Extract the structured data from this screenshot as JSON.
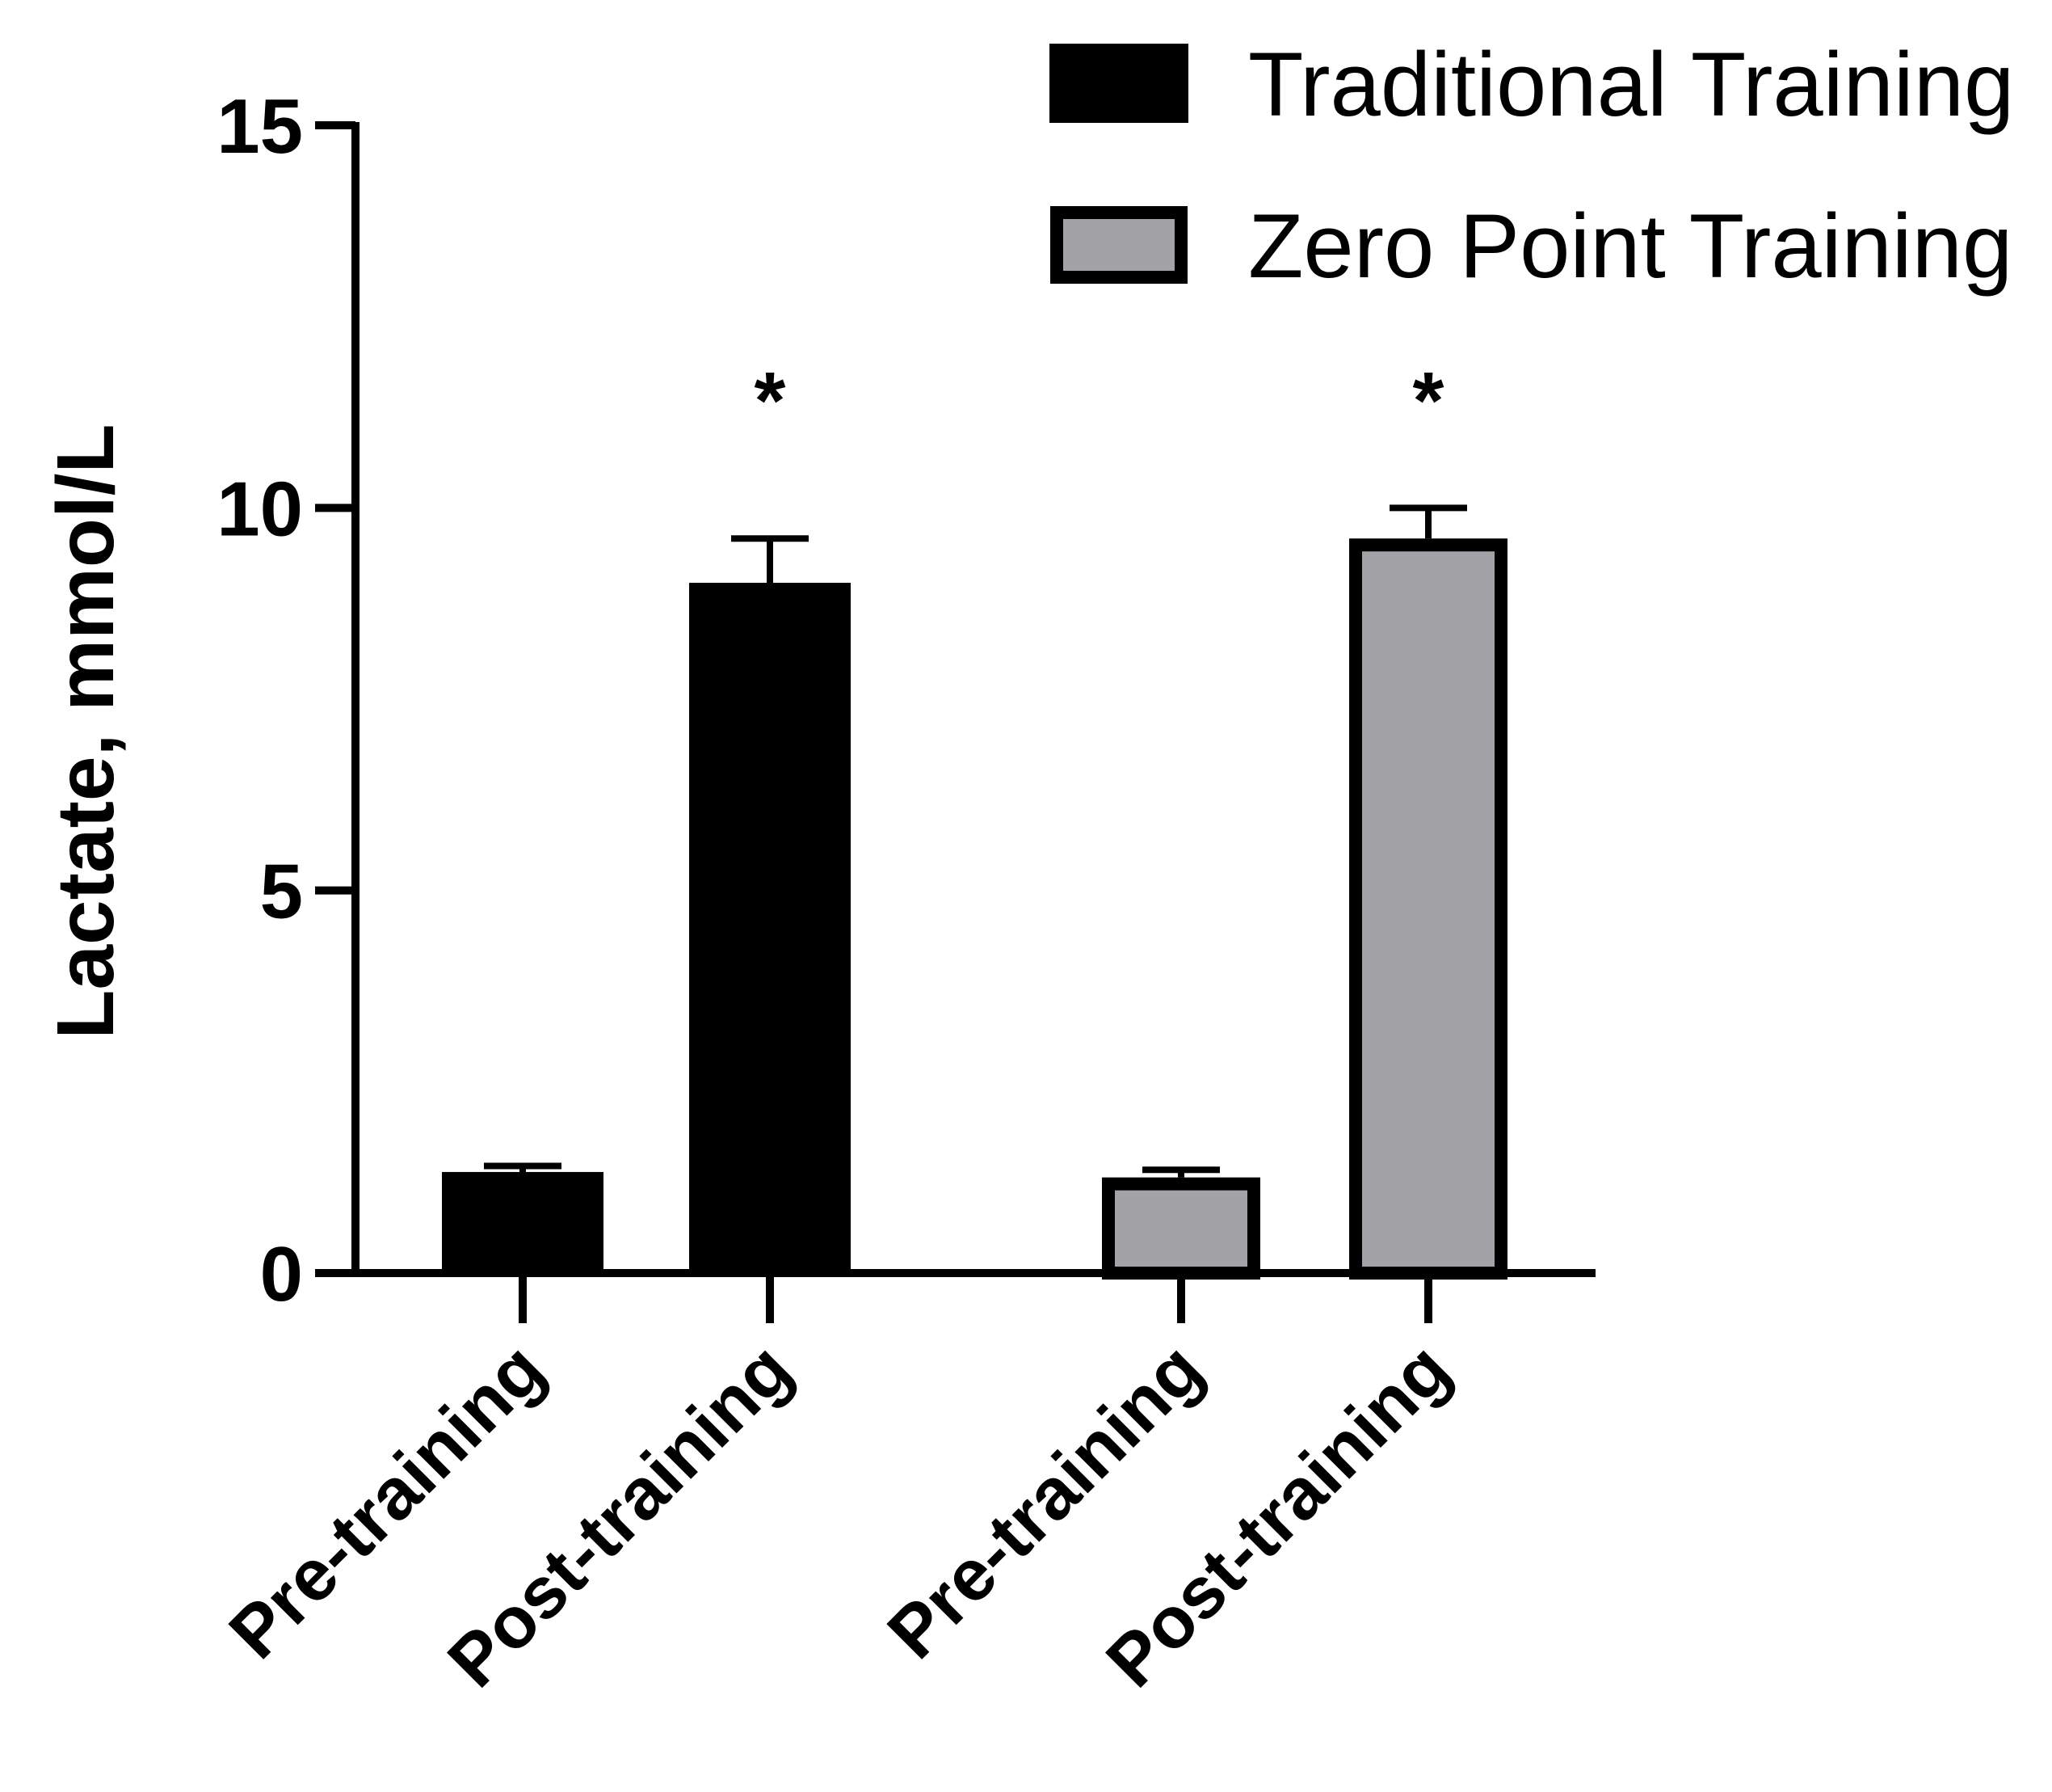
{
  "chart_data": {
    "type": "bar",
    "ylabel": "Lactate, mmol/L",
    "xlabel": "",
    "ylim": [
      0,
      15
    ],
    "yticks": [
      0,
      5,
      10,
      15
    ],
    "categories": [
      "Pre-training",
      "Post-training",
      "Pre-training",
      "Post-training"
    ],
    "series": [
      {
        "name": "Traditional Training",
        "color": "#000000",
        "bars": [
          {
            "category_index": 0,
            "value": 1.3,
            "error": 0.1,
            "significance": ""
          },
          {
            "category_index": 1,
            "value": 9.0,
            "error": 0.6,
            "significance": "*"
          }
        ]
      },
      {
        "name": "Zero Point Training",
        "color": "#a3a2a7",
        "bars": [
          {
            "category_index": 2,
            "value": 1.25,
            "error": 0.1,
            "significance": ""
          },
          {
            "category_index": 3,
            "value": 9.6,
            "error": 0.4,
            "significance": "*"
          }
        ]
      }
    ],
    "legend_position": "top-right",
    "grid": false
  }
}
